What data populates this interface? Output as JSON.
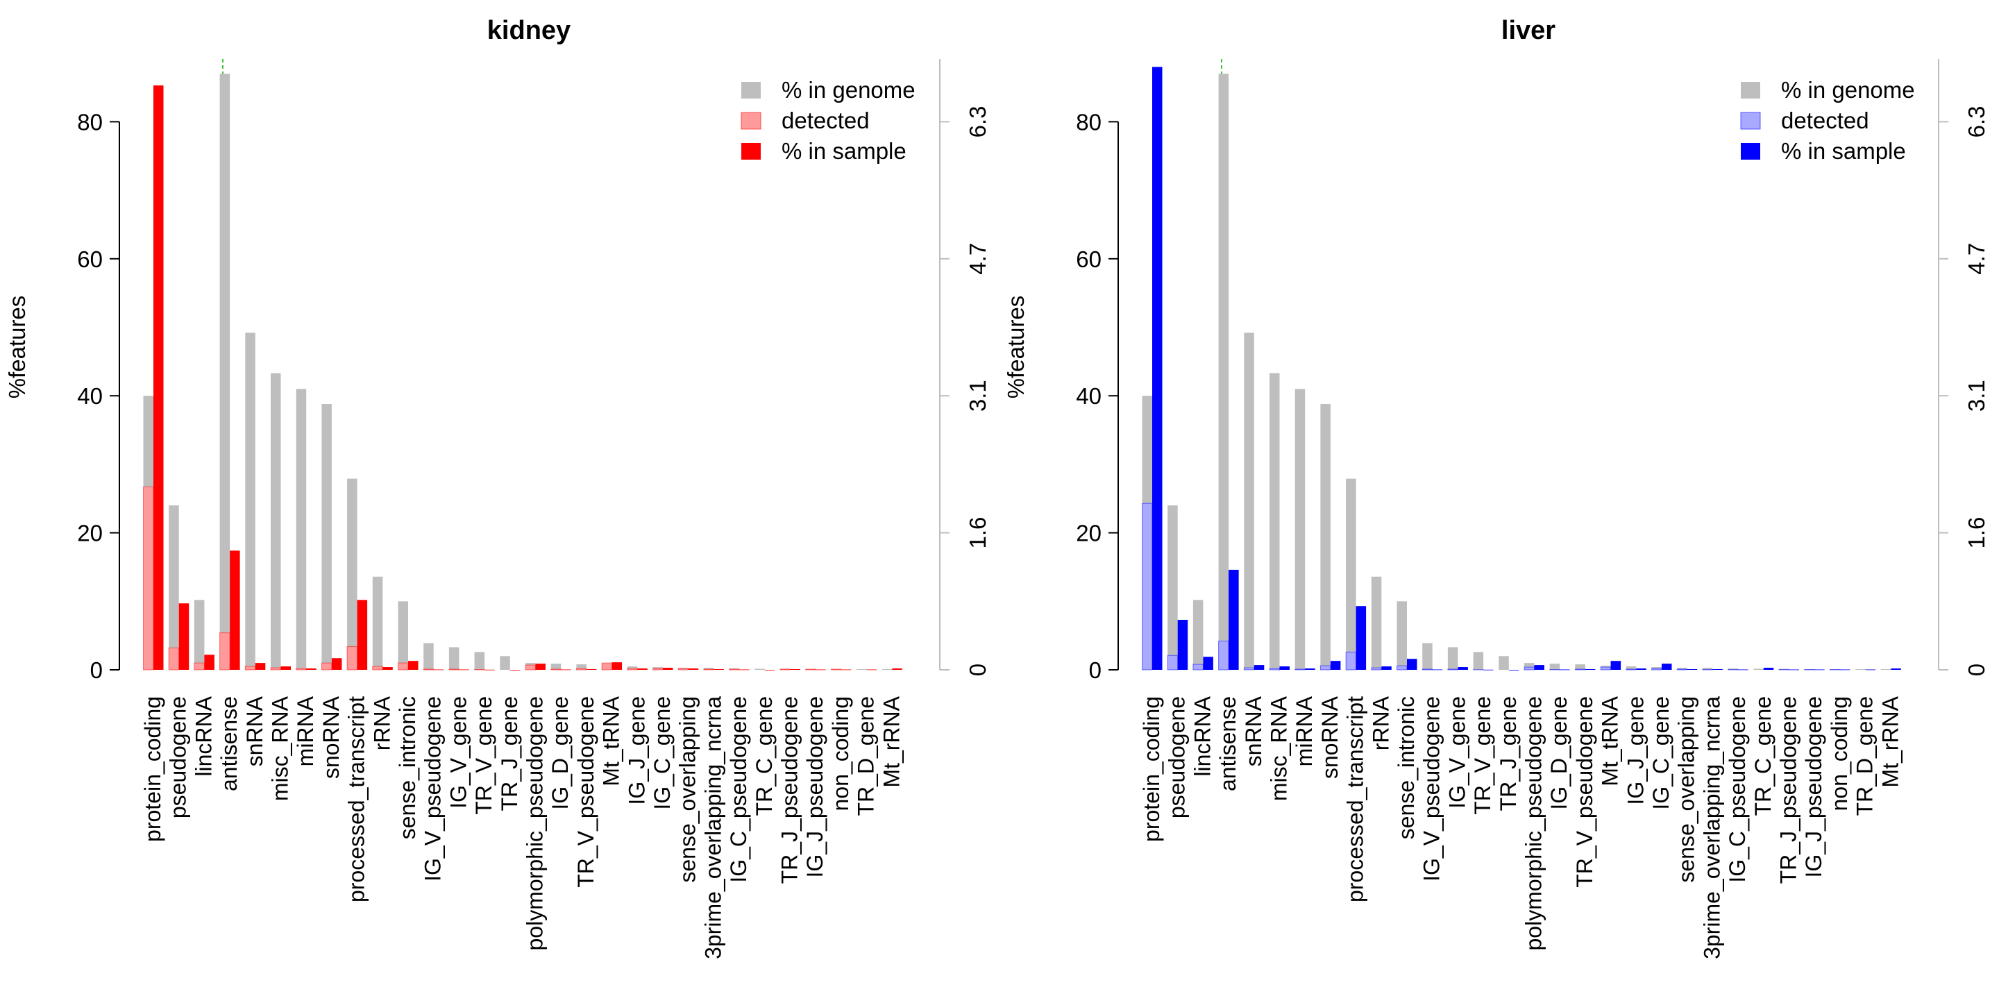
{
  "chart_data": [
    {
      "type": "bar",
      "title": "kidney",
      "ylabel": "%features",
      "ylim": [
        0,
        88
      ],
      "y_ticks": [
        0,
        20,
        40,
        60,
        80
      ],
      "right_axis_ticks": [
        "0",
        "1.6",
        "3.1",
        "4.7",
        "6.3"
      ],
      "legend_position": "top-right",
      "colors": {
        "genome": "#bebebe",
        "detected": "#ff9a9a",
        "sample": "#ff0000"
      },
      "series": [
        {
          "name": "% in genome",
          "values": [
            40,
            24,
            10.2,
            87,
            49.2,
            43.3,
            41,
            38.8,
            27.9,
            13.6,
            10,
            3.9,
            3.3,
            2.6,
            2,
            1,
            0.9,
            0.8,
            0.6,
            0.5,
            0.4,
            0.3,
            0.3,
            0.2,
            0.15,
            0.15,
            0.1,
            0.1,
            0.1,
            0.1
          ]
        },
        {
          "name": "detected",
          "values": [
            26.7,
            3.2,
            1,
            5.4,
            0.5,
            0.3,
            0.2,
            1,
            3.4,
            0.5,
            1,
            0.1,
            0.1,
            0.05,
            0,
            0.7,
            0.1,
            0.2,
            1,
            0.2,
            0.2,
            0.2,
            0.1,
            0.1,
            0,
            0.1,
            0.1,
            0.1,
            0,
            0
          ]
        },
        {
          "name": "% in sample",
          "values": [
            85.3,
            9.7,
            2.2,
            17.4,
            1,
            0.5,
            0.2,
            1.7,
            10.2,
            0.4,
            1.3,
            0.05,
            0.05,
            0.02,
            0,
            0.9,
            0.05,
            0.1,
            1.1,
            0.2,
            0.3,
            0.2,
            0.1,
            0.05,
            0,
            0.1,
            0.05,
            0.05,
            0.05,
            0.2
          ]
        }
      ]
    },
    {
      "type": "bar",
      "title": "liver",
      "ylabel": "%features",
      "ylim": [
        0,
        88
      ],
      "y_ticks": [
        0,
        20,
        40,
        60,
        80
      ],
      "right_axis_ticks": [
        "0",
        "1.6",
        "3.1",
        "4.7",
        "6.3"
      ],
      "legend_position": "top-right",
      "colors": {
        "genome": "#bebebe",
        "detected": "#a9a9ff",
        "sample": "#0000ff"
      },
      "series": [
        {
          "name": "% in genome",
          "values": [
            40,
            24,
            10.2,
            87,
            49.2,
            43.3,
            41,
            38.8,
            27.9,
            13.6,
            10,
            3.9,
            3.3,
            2.6,
            2,
            1,
            0.9,
            0.8,
            0.6,
            0.5,
            0.4,
            0.3,
            0.3,
            0.2,
            0.15,
            0.15,
            0.1,
            0.1,
            0.1,
            0.1
          ]
        },
        {
          "name": "detected",
          "values": [
            24.3,
            2.1,
            0.8,
            4.2,
            0.3,
            0.2,
            0.1,
            0.6,
            2.6,
            0.3,
            0.6,
            0.1,
            0.1,
            0.02,
            0,
            0.4,
            0.05,
            0.1,
            0.4,
            0.1,
            0.2,
            0.1,
            0.05,
            0.05,
            0,
            0.05,
            0.05,
            0.05,
            0,
            0
          ]
        },
        {
          "name": "% in sample",
          "values": [
            88,
            7.3,
            1.9,
            14.6,
            0.7,
            0.5,
            0.2,
            1.3,
            9.3,
            0.5,
            1.6,
            0.05,
            0.4,
            0.02,
            0,
            0.7,
            0.05,
            0.1,
            1.3,
            0.2,
            0.9,
            0.1,
            0.1,
            0.05,
            0.3,
            0.05,
            0.05,
            0.05,
            0.05,
            0.2
          ]
        }
      ]
    }
  ],
  "categories": [
    "protein_coding",
    "pseudogene",
    "lincRNA",
    "antisense",
    "snRNA",
    "misc_RNA",
    "miRNA",
    "snoRNA",
    "processed_transcript",
    "rRNA",
    "sense_intronic",
    "IG_V_pseudogene",
    "IG_V_gene",
    "TR_V_gene",
    "TR_J_gene",
    "polymorphic_pseudogene",
    "IG_D_gene",
    "TR_V_pseudogene",
    "Mt_tRNA",
    "IG_J_gene",
    "IG_C_gene",
    "sense_overlapping",
    "3prime_overlapping_ncrna",
    "IG_C_pseudogene",
    "TR_C_gene",
    "TR_J_pseudogene",
    "IG_J_pseudogene",
    "non_coding",
    "TR_D_gene",
    "Mt_rRNA"
  ]
}
